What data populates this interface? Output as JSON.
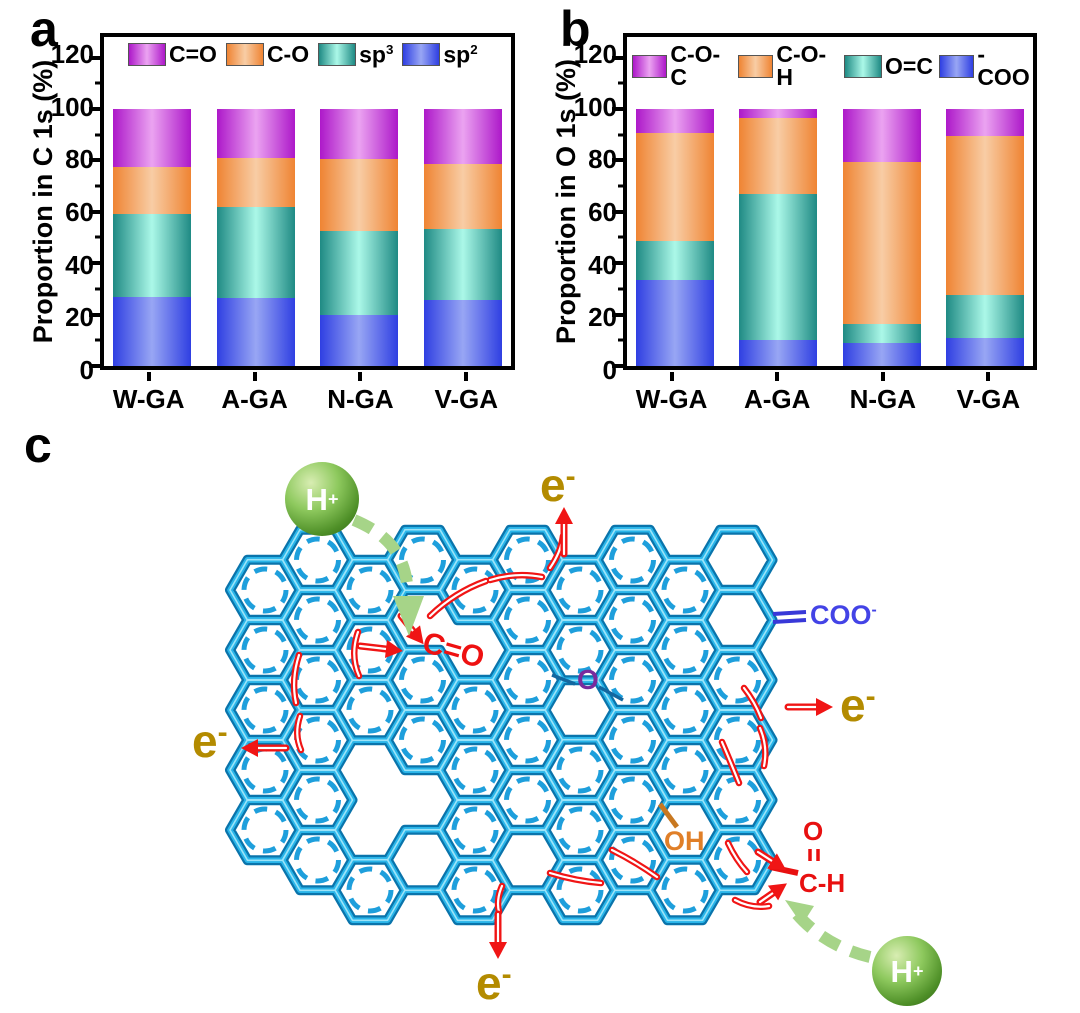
{
  "panels": {
    "a": "a",
    "b": "b",
    "c": "c"
  },
  "chart_data": [
    {
      "type": "bar",
      "stacked": true,
      "panel": "a",
      "title": "",
      "xlabel": "",
      "ylabel": "Proportion in C 1s (%)",
      "categories": [
        "W-GA",
        "A-GA",
        "N-GA",
        "V-GA"
      ],
      "series": [
        {
          "label": "sp",
          "sup": "2",
          "values": [
            27,
            26.5,
            20,
            25.5
          ],
          "edge": "#2f3fe2",
          "mid": "#98a6f4"
        },
        {
          "label": "sp",
          "sup": "3",
          "values": [
            32,
            35.5,
            32.5,
            28
          ],
          "edge": "#1f8a84",
          "mid": "#abf8e8"
        },
        {
          "label": "C-O",
          "values": [
            18.5,
            19,
            28,
            25
          ],
          "edge": "#ef8433",
          "mid": "#f8cda5"
        },
        {
          "label": "C=O",
          "values": [
            22.5,
            19,
            19.5,
            21.5
          ],
          "edge": "#ad18c9",
          "mid": "#eba3f1"
        }
      ],
      "ylim": [
        0,
        128
      ],
      "yticks": [
        0,
        20,
        40,
        60,
        80,
        100,
        120
      ],
      "grid": false,
      "legend_position": "top"
    },
    {
      "type": "bar",
      "stacked": true,
      "panel": "b",
      "title": "",
      "xlabel": "",
      "ylabel": "Proportion in O 1s (%)",
      "categories": [
        "W-GA",
        "A-GA",
        "N-GA",
        "V-GA"
      ],
      "series": [
        {
          "label": "-COO",
          "values": [
            33.5,
            10,
            9,
            11
          ],
          "edge": "#2f3fe2",
          "mid": "#98a6f4"
        },
        {
          "label": "O=C",
          "values": [
            15,
            57,
            7.5,
            16.5
          ],
          "edge": "#1f8a84",
          "mid": "#abf8e8"
        },
        {
          "label": "C-O-H",
          "values": [
            42,
            29.5,
            63,
            62
          ],
          "edge": "#ef8433",
          "mid": "#f8cda5"
        },
        {
          "label": "C-O-C",
          "values": [
            9.5,
            3.5,
            20.5,
            10.5
          ],
          "edge": "#ad18c9",
          "mid": "#eba3f1"
        }
      ],
      "ylim": [
        0,
        128
      ],
      "yticks": [
        0,
        20,
        40,
        60,
        80,
        100,
        120
      ],
      "grid": false,
      "legend_position": "top"
    }
  ],
  "diagram": {
    "proton": {
      "base": "H",
      "sup": "+"
    },
    "electron": {
      "base": "e",
      "sup": "-"
    },
    "carbonyl": "C=O",
    "ether_o": "O",
    "hydroxyl": "OH",
    "carboxylate": {
      "base": "COO",
      "sup": "-"
    },
    "aldehyde": {
      "o": "O",
      "ch": "C-H"
    },
    "colors": {
      "lattice_cyan": "#29b5e9",
      "lattice_outline": "#0a74ab",
      "ring_dashed": "#1e9fdc",
      "electron_gold": "#b38b00",
      "arrow_red": "#f01515",
      "green_arrow": "#a6d488",
      "proton_green": "#4e8f27",
      "carboxylate_blue": "#4343e6",
      "ether_purple": "#7a2b9d",
      "hydroxyl_orange": "#e07f28",
      "aldehyde_red": "#e81010"
    }
  }
}
